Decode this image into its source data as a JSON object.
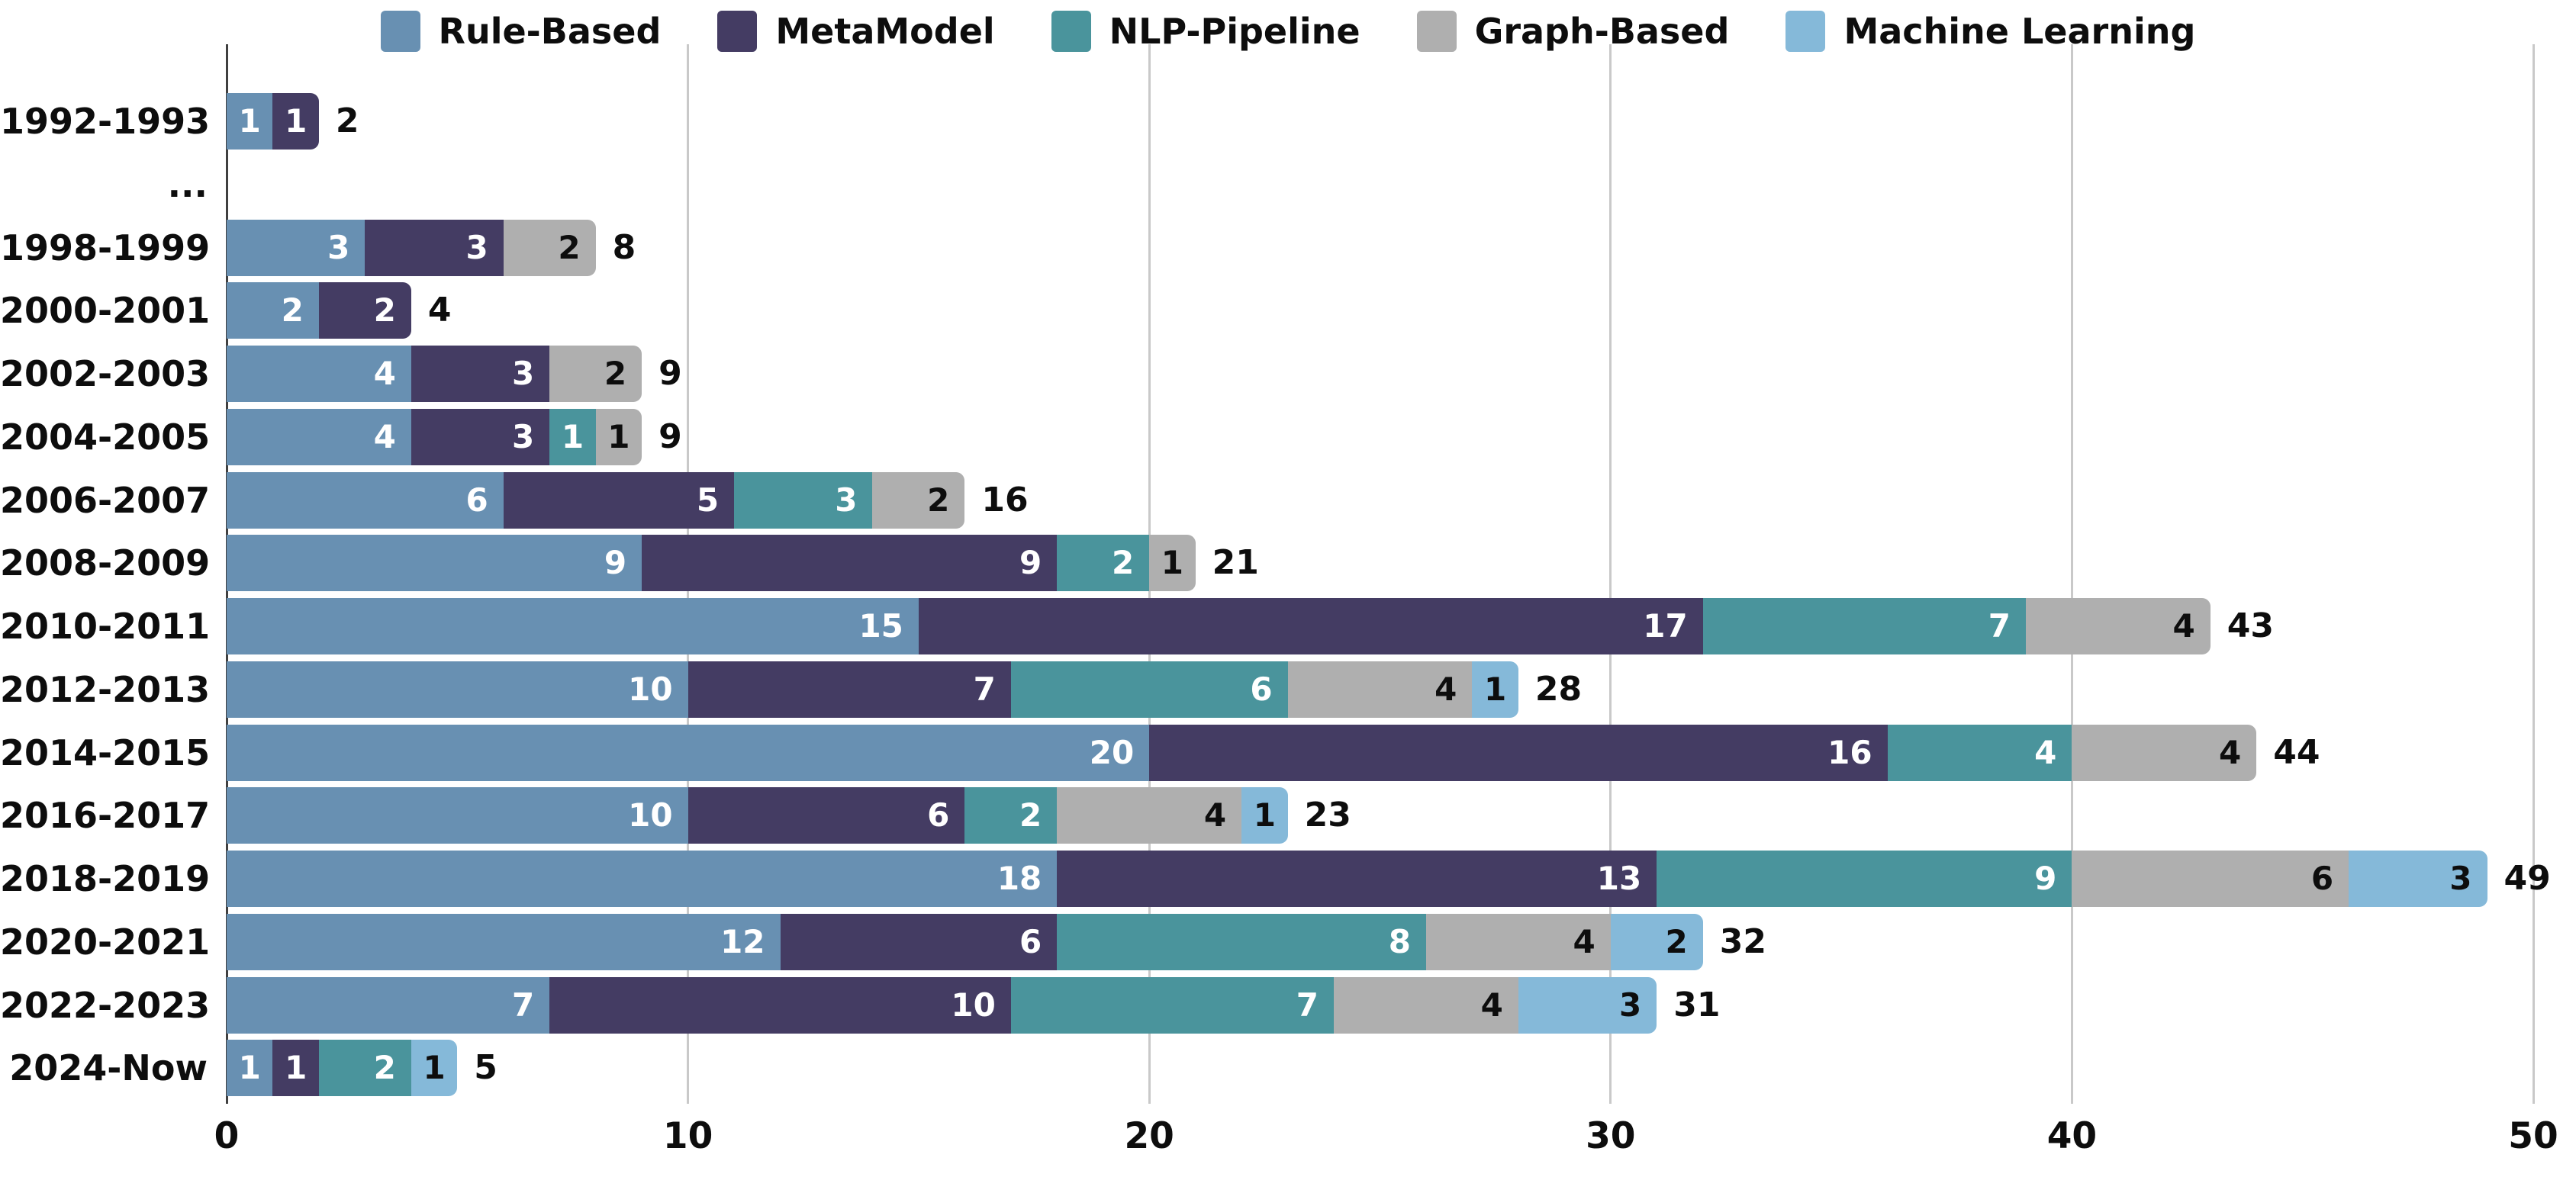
{
  "chart_data": {
    "type": "bar",
    "orientation": "horizontal",
    "stacked": true,
    "title": "",
    "xlabel": "",
    "ylabel": "",
    "xlim": [
      0,
      50
    ],
    "x_ticks": [
      0,
      10,
      20,
      30,
      40,
      50
    ],
    "grid": "vertical-gridlines-on",
    "legend_position": "top-center",
    "categories": [
      "1992-1993",
      "...",
      "1998-1999",
      "2000-2001",
      "2002-2003",
      "2004-2005",
      "2006-2007",
      "2008-2009",
      "2010-2011",
      "2012-2013",
      "2014-2015",
      "2016-2017",
      "2018-2019",
      "2020-2021",
      "2022-2023",
      "2024-Now"
    ],
    "series": [
      {
        "name": "Rule-Based",
        "color": "#6890b2",
        "label_color": "#ffffff",
        "values": [
          1,
          null,
          3,
          2,
          4,
          4,
          6,
          9,
          15,
          10,
          20,
          10,
          18,
          12,
          7,
          1
        ]
      },
      {
        "name": "MetaModel",
        "color": "#443c63",
        "label_color": "#ffffff",
        "values": [
          1,
          null,
          3,
          2,
          3,
          3,
          5,
          9,
          17,
          7,
          16,
          6,
          13,
          6,
          10,
          1
        ]
      },
      {
        "name": "NLP-Pipeline",
        "color": "#4a949c",
        "label_color": "#ffffff",
        "values": [
          0,
          null,
          0,
          0,
          0,
          1,
          3,
          2,
          7,
          6,
          4,
          2,
          9,
          8,
          7,
          2
        ]
      },
      {
        "name": "Graph-Based",
        "color": "#afafaf",
        "label_color": "#0d0d0d",
        "values": [
          0,
          null,
          2,
          0,
          2,
          1,
          2,
          1,
          4,
          4,
          4,
          4,
          6,
          4,
          4,
          0
        ]
      },
      {
        "name": "Machine Learning",
        "color": "#85b9d9",
        "label_color": "#0d0d0d",
        "values": [
          0,
          null,
          0,
          0,
          0,
          0,
          0,
          0,
          0,
          1,
          0,
          1,
          3,
          2,
          3,
          1
        ]
      }
    ],
    "totals": [
      2,
      null,
      8,
      4,
      9,
      9,
      16,
      21,
      43,
      28,
      44,
      23,
      49,
      32,
      31,
      5
    ]
  },
  "colors": {
    "grid_line": "#c9c9c9",
    "axis_line": "#404040",
    "text": "#0d0d0d",
    "background": "#ffffff"
  }
}
